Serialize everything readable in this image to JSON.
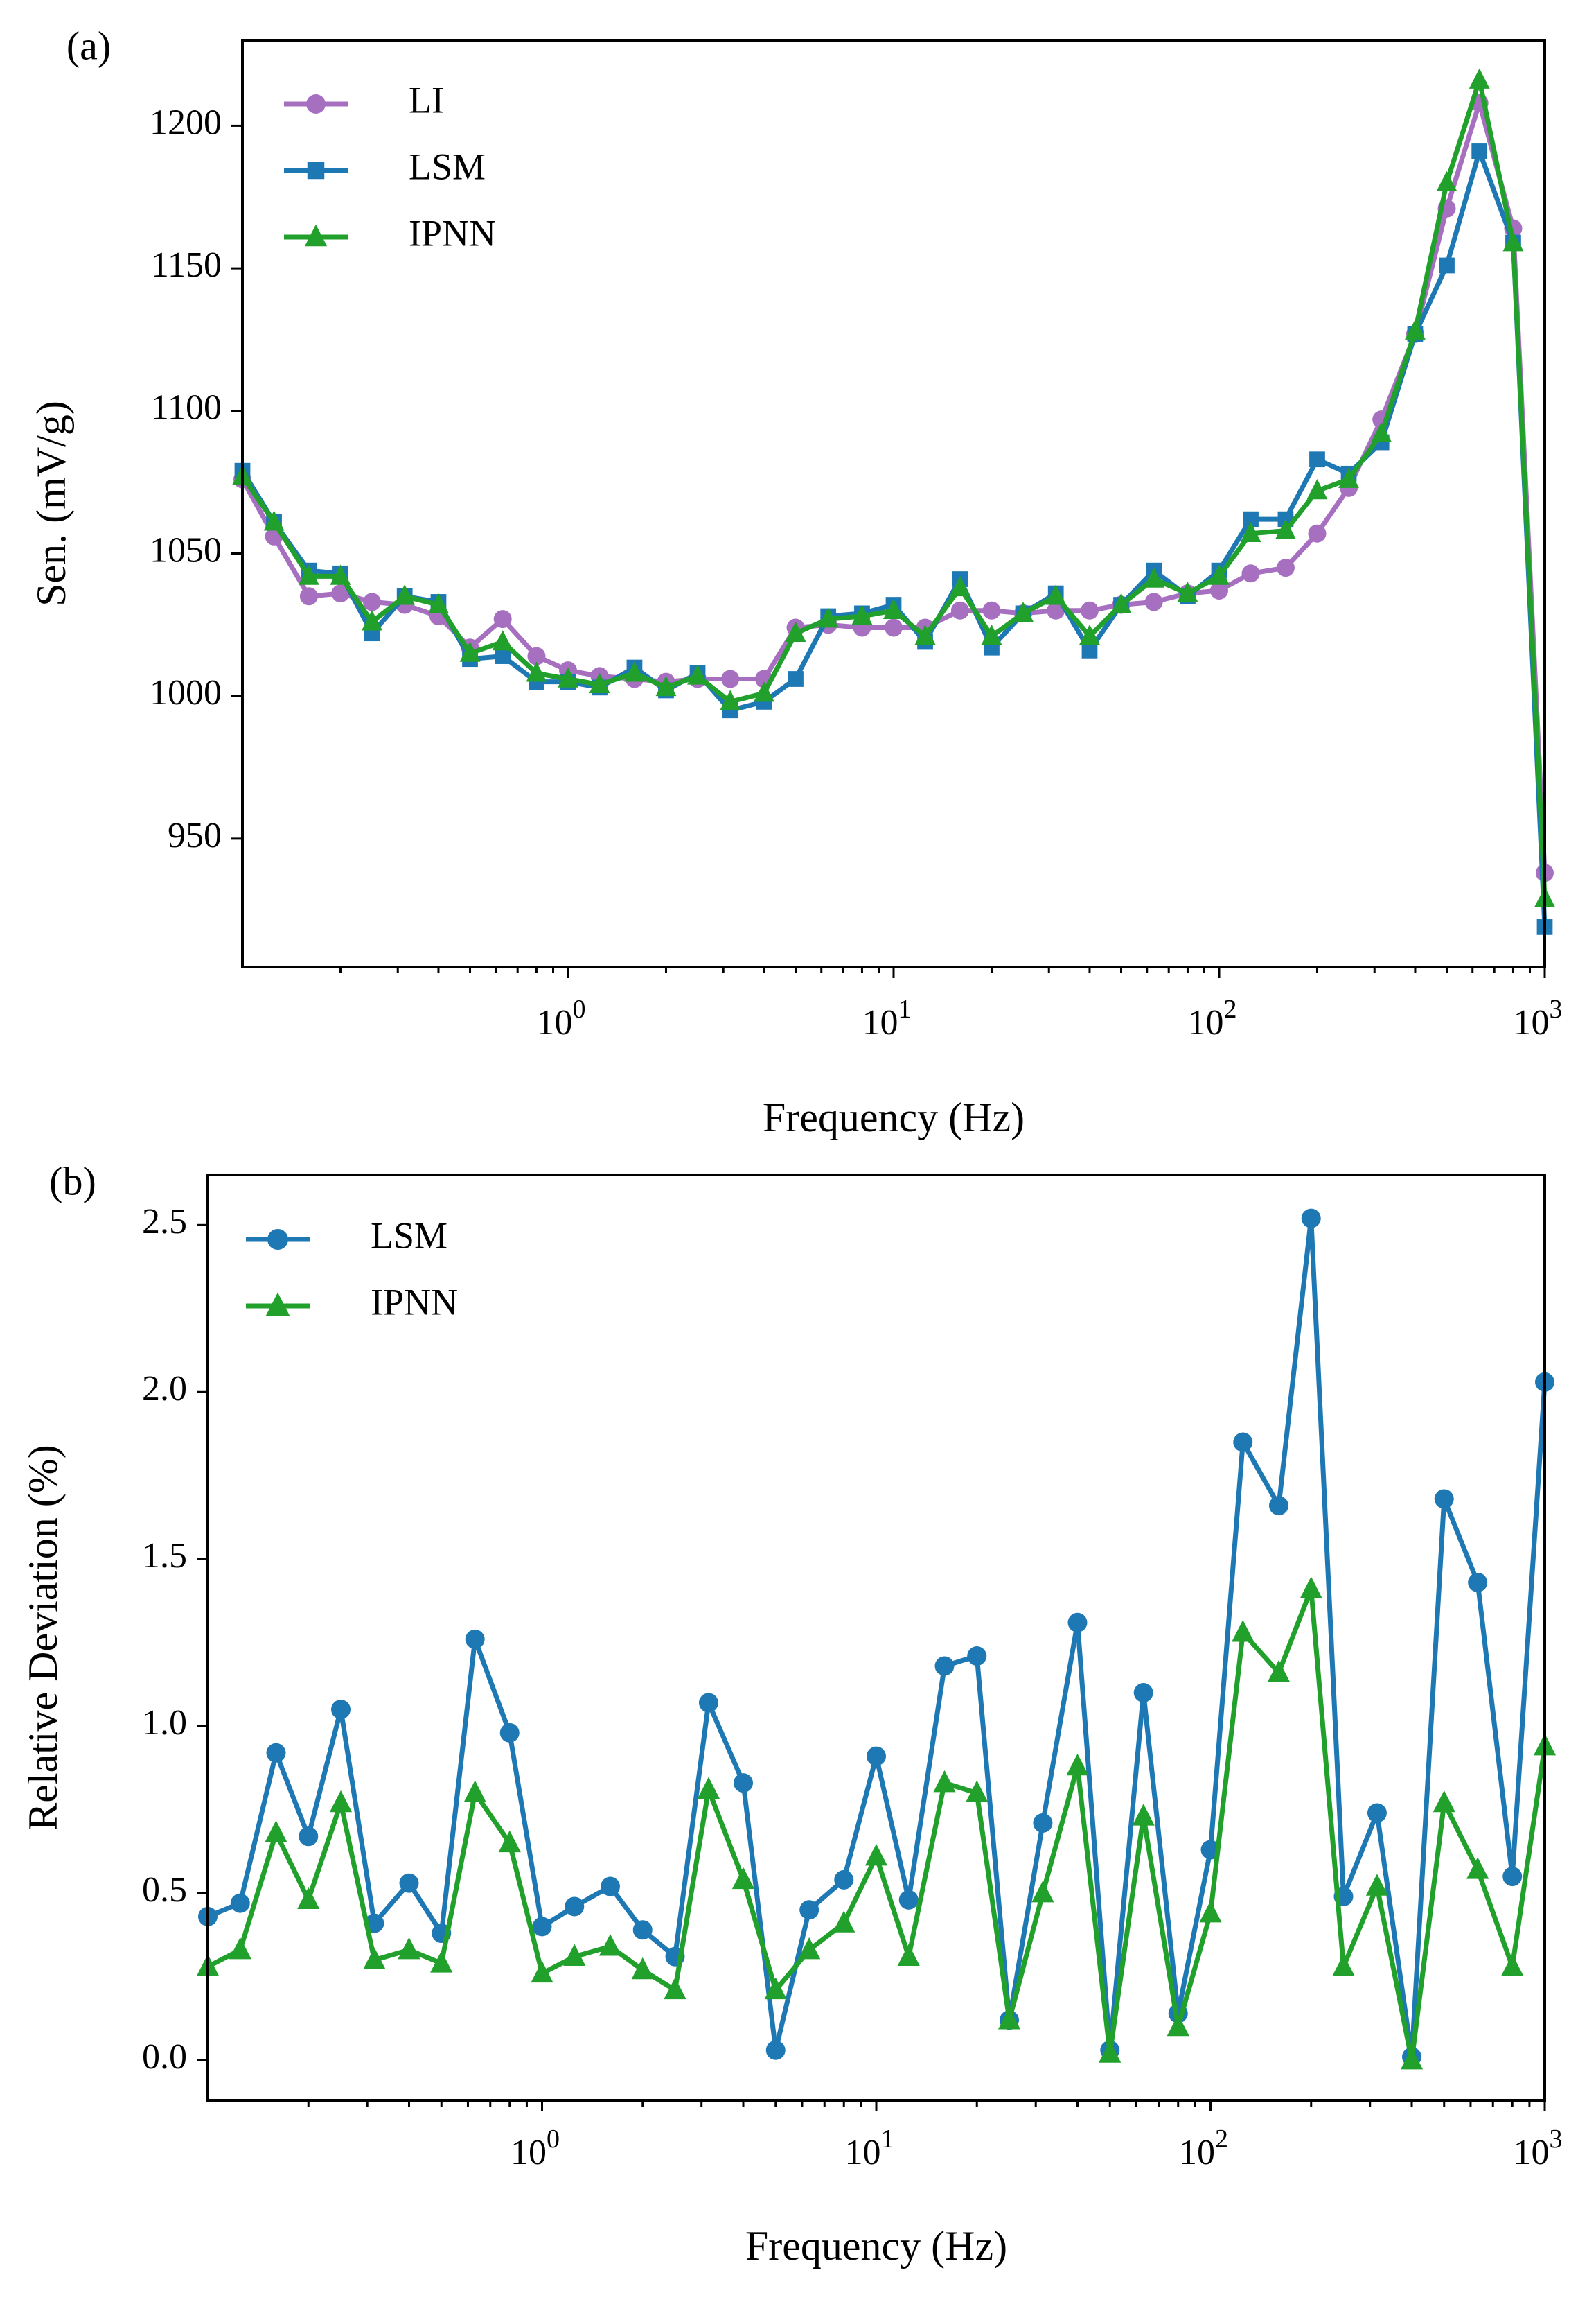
{
  "chart_data": [
    {
      "panel": "(a)",
      "type": "line",
      "xlabel": "Frequency (Hz)",
      "ylabel": "Sen. (mV/g)",
      "xscale": "log",
      "xlim": [
        0.1,
        1000
      ],
      "ylim": [
        905,
        1230
      ],
      "xticks": [
        1,
        10,
        100,
        1000
      ],
      "xtick_labels": [
        {
          "base": "10",
          "exp": "0"
        },
        {
          "base": "10",
          "exp": "1"
        },
        {
          "base": "10",
          "exp": "2"
        },
        {
          "base": "10",
          "exp": "3"
        }
      ],
      "yticks": [
        950,
        1000,
        1050,
        1100,
        1150,
        1200
      ],
      "ytick_labels": [
        "950",
        "1000",
        "1050",
        "1100",
        "1150",
        "1200"
      ],
      "grid": false,
      "legend": "top-left",
      "x": [
        0.1,
        0.125,
        0.16,
        0.2,
        0.25,
        0.315,
        0.4,
        0.5,
        0.63,
        0.8,
        1,
        1.25,
        1.6,
        2,
        2.5,
        3.15,
        4,
        5,
        6.3,
        8,
        10,
        12.5,
        16,
        20,
        25,
        31.5,
        40,
        50,
        63,
        80,
        100,
        125,
        160,
        200,
        250,
        315,
        400,
        500,
        630,
        800,
        1000
      ],
      "series": [
        {
          "name": "LI",
          "color": "#a66fbf",
          "marker": "circle",
          "values": [
            1076,
            1056,
            1035,
            1036,
            1033,
            1032,
            1028,
            1017,
            1027,
            1014,
            1009,
            1007,
            1006,
            1005,
            1006,
            1006,
            1006,
            1024,
            1025,
            1024,
            1024,
            1024,
            1030,
            1030,
            1029,
            1030,
            1030,
            1032,
            1033,
            1036,
            1037,
            1043,
            1045,
            1057,
            1073,
            1097,
            1127,
            1171,
            1208,
            1164,
            938
          ]
        },
        {
          "name": "LSM",
          "color": "#1e78b4",
          "marker": "square",
          "values": [
            1079,
            1061,
            1044,
            1043,
            1022,
            1035,
            1033,
            1013,
            1014,
            1005,
            1005,
            1003,
            1010,
            1002,
            1008,
            995,
            998,
            1006,
            1028,
            1029,
            1032,
            1019,
            1041,
            1017,
            1029,
            1036,
            1016,
            1032,
            1044,
            1035,
            1044,
            1062,
            1062,
            1083,
            1078,
            1089,
            1127,
            1151,
            1191,
            1159,
            919
          ]
        },
        {
          "name": "IPNN",
          "color": "#22a02c",
          "marker": "triangle",
          "values": [
            1077,
            1061,
            1042,
            1042,
            1026,
            1035,
            1032,
            1015,
            1019,
            1008,
            1006,
            1004,
            1008,
            1003,
            1007,
            998,
            1001,
            1022,
            1027,
            1028,
            1030,
            1021,
            1038,
            1021,
            1029,
            1035,
            1021,
            1032,
            1041,
            1036,
            1042,
            1057,
            1058,
            1072,
            1076,
            1092,
            1128,
            1180,
            1216,
            1159,
            929
          ]
        }
      ]
    },
    {
      "panel": "(b)",
      "type": "line",
      "xlabel": "Frequency (Hz)",
      "ylabel": "Relative Deviation (%)",
      "xscale": "log",
      "xlim": [
        0.1,
        1000
      ],
      "ylim": [
        -0.12,
        2.65
      ],
      "xticks": [
        1,
        10,
        100,
        1000
      ],
      "xtick_labels": [
        {
          "base": "10",
          "exp": "0"
        },
        {
          "base": "10",
          "exp": "1"
        },
        {
          "base": "10",
          "exp": "2"
        },
        {
          "base": "10",
          "exp": "3"
        }
      ],
      "yticks": [
        0.0,
        0.5,
        1.0,
        1.5,
        2.0,
        2.5
      ],
      "ytick_labels": [
        "0.0",
        "0.5",
        "1.0",
        "1.5",
        "2.0",
        "2.5"
      ],
      "grid": false,
      "legend": "top-left",
      "x": [
        0.1,
        0.125,
        0.16,
        0.2,
        0.25,
        0.315,
        0.4,
        0.5,
        0.63,
        0.8,
        1,
        1.25,
        1.6,
        2,
        2.5,
        3.15,
        4,
        5,
        6.3,
        8,
        10,
        12.5,
        16,
        20,
        25,
        31.5,
        40,
        50,
        63,
        80,
        100,
        125,
        160,
        200,
        250,
        315,
        400,
        500,
        630,
        800,
        1000
      ],
      "series": [
        {
          "name": "LSM",
          "color": "#1e78b4",
          "marker": "circle",
          "values": [
            0.43,
            0.47,
            0.92,
            0.67,
            1.05,
            0.41,
            0.53,
            0.38,
            1.26,
            0.98,
            0.4,
            0.46,
            0.52,
            0.39,
            0.31,
            1.07,
            0.83,
            0.03,
            0.45,
            0.54,
            0.91,
            0.48,
            1.18,
            1.21,
            0.12,
            0.71,
            1.31,
            0.03,
            1.1,
            0.14,
            0.63,
            1.85,
            1.66,
            2.52,
            0.49,
            0.74,
            0.01,
            1.68,
            1.43,
            0.55,
            2.03
          ]
        },
        {
          "name": "IPNN",
          "color": "#22a02c",
          "marker": "triangle",
          "values": [
            0.28,
            0.33,
            0.68,
            0.48,
            0.77,
            0.3,
            0.33,
            0.29,
            0.8,
            0.65,
            0.26,
            0.31,
            0.34,
            0.27,
            0.21,
            0.81,
            0.54,
            0.21,
            0.33,
            0.41,
            0.61,
            0.31,
            0.83,
            0.8,
            0.12,
            0.5,
            0.88,
            0.02,
            0.73,
            0.1,
            0.44,
            1.28,
            1.16,
            1.41,
            0.28,
            0.52,
            0.0,
            0.77,
            0.57,
            0.28,
            0.94
          ]
        }
      ]
    }
  ]
}
